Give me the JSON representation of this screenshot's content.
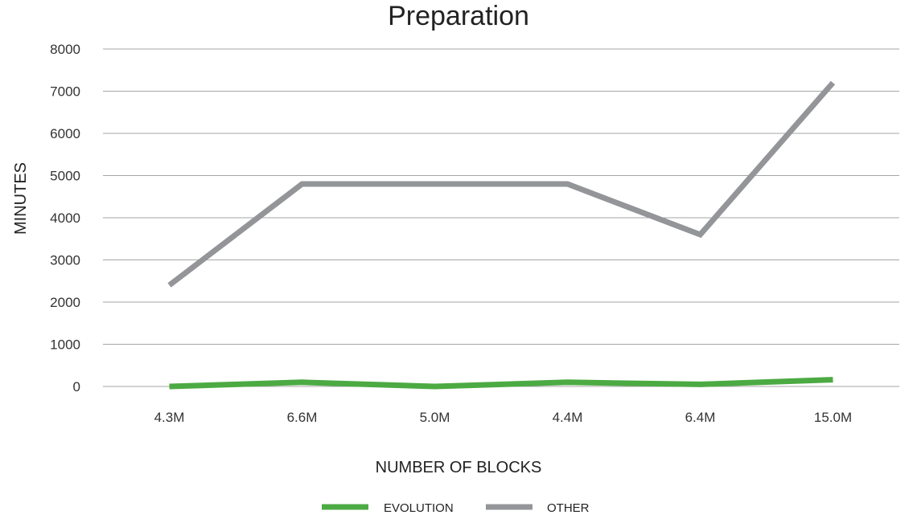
{
  "chart_data": {
    "type": "line",
    "title": "Preparation",
    "xlabel": "NUMBER OF BLOCKS",
    "ylabel": "MINUTES",
    "categories": [
      "4.3M",
      "6.6M",
      "5.0M",
      "4.4M",
      "6.4M",
      "15.0M"
    ],
    "ylim": [
      0,
      8000
    ],
    "yticks": [
      0,
      1000,
      2000,
      3000,
      4000,
      5000,
      6000,
      7000,
      8000
    ],
    "grid": true,
    "legend_position": "bottom",
    "series": [
      {
        "name": "EVOLUTION",
        "color": "#4caa43",
        "values": [
          0,
          100,
          0,
          100,
          50,
          160
        ]
      },
      {
        "name": "OTHER",
        "color": "#939598",
        "values": [
          2400,
          4800,
          4800,
          4800,
          3600,
          7200
        ]
      }
    ]
  }
}
